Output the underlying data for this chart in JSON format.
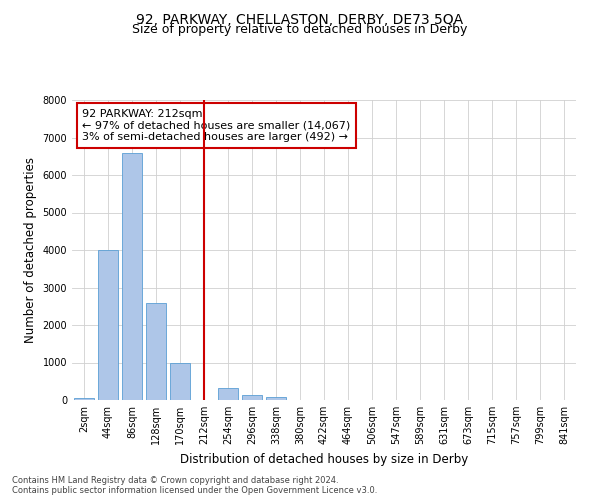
{
  "title": "92, PARKWAY, CHELLASTON, DERBY, DE73 5QA",
  "subtitle": "Size of property relative to detached houses in Derby",
  "xlabel": "Distribution of detached houses by size in Derby",
  "ylabel": "Number of detached properties",
  "bin_labels": [
    "2sqm",
    "44sqm",
    "86sqm",
    "128sqm",
    "170sqm",
    "212sqm",
    "254sqm",
    "296sqm",
    "338sqm",
    "380sqm",
    "422sqm",
    "464sqm",
    "506sqm",
    "547sqm",
    "589sqm",
    "631sqm",
    "673sqm",
    "715sqm",
    "757sqm",
    "799sqm",
    "841sqm"
  ],
  "bar_values": [
    60,
    4000,
    6600,
    2600,
    1000,
    0,
    330,
    130,
    70,
    0,
    0,
    0,
    0,
    0,
    0,
    0,
    0,
    0,
    0,
    0,
    0
  ],
  "bar_color": "#aec6e8",
  "bar_edge_color": "#5a9fd4",
  "vline_x": 5,
  "vline_color": "#cc0000",
  "ylim": [
    0,
    8000
  ],
  "yticks": [
    0,
    1000,
    2000,
    3000,
    4000,
    5000,
    6000,
    7000,
    8000
  ],
  "annotation_title": "92 PARKWAY: 212sqm",
  "annotation_line1": "← 97% of detached houses are smaller (14,067)",
  "annotation_line2": "3% of semi-detached houses are larger (492) →",
  "annotation_box_color": "#ffffff",
  "annotation_box_edge": "#cc0000",
  "footer_line1": "Contains HM Land Registry data © Crown copyright and database right 2024.",
  "footer_line2": "Contains public sector information licensed under the Open Government Licence v3.0.",
  "bg_color": "#ffffff",
  "grid_color": "#d0d0d0",
  "title_fontsize": 10,
  "subtitle_fontsize": 9,
  "axis_label_fontsize": 8.5,
  "tick_fontsize": 7,
  "annotation_fontsize": 8,
  "footer_fontsize": 6
}
